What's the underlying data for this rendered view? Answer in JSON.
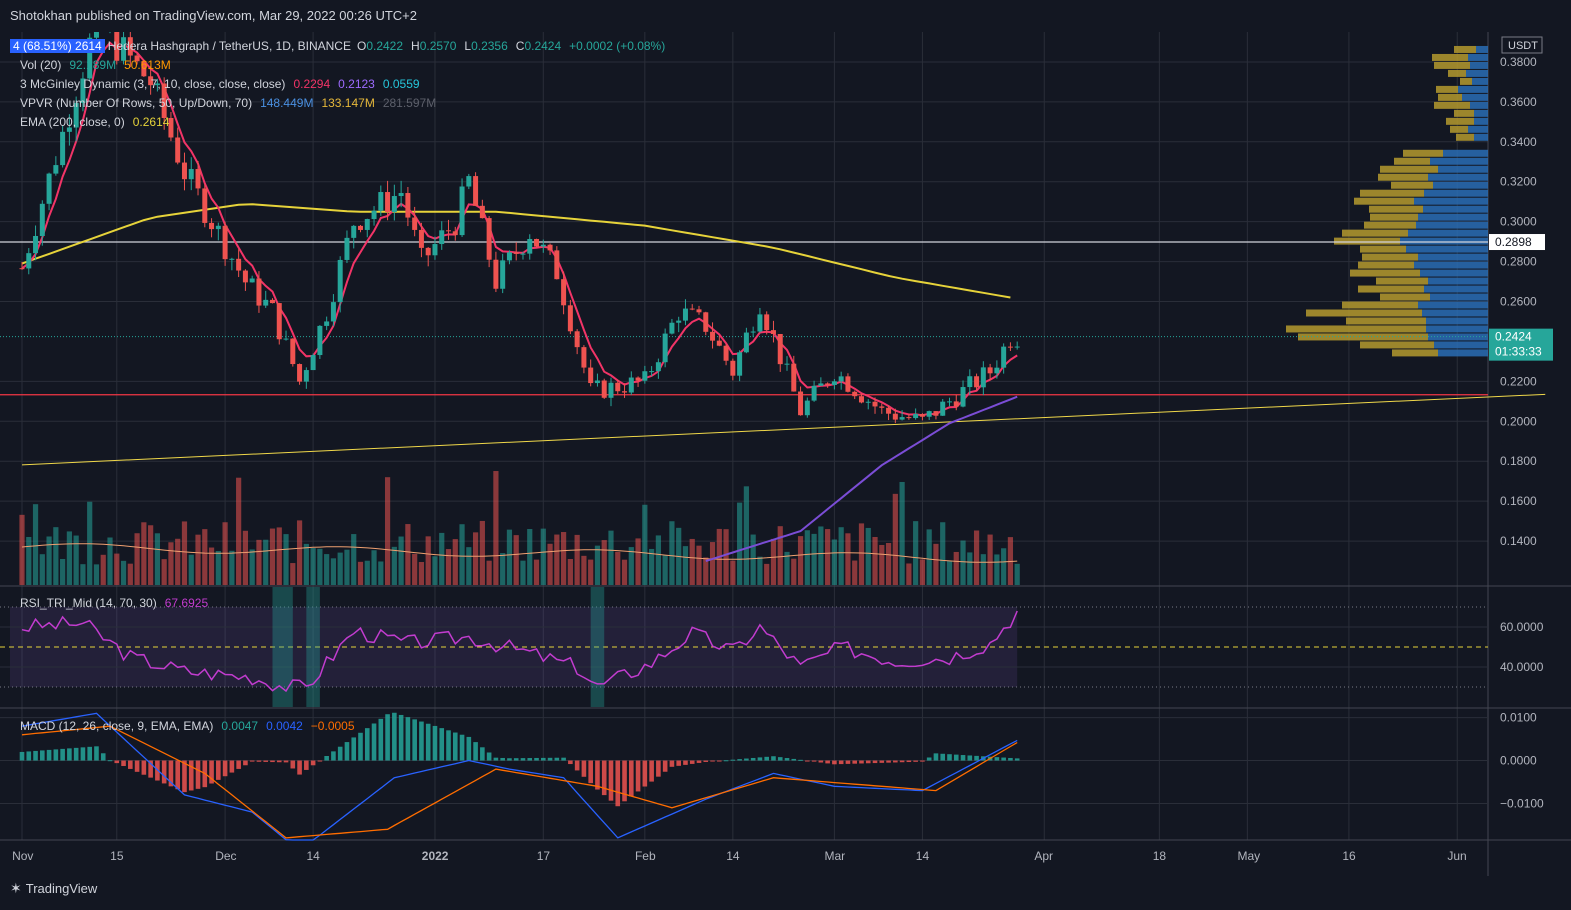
{
  "header": {
    "publisher": "Shotokhan published on TradingView.com, Mar 29, 2022 00:26 UTC+2"
  },
  "footer": {
    "brand": "TradingView"
  },
  "price_axis": {
    "currency": "USDT"
  },
  "legend": {
    "symbol": "Hedera Hashgraph / TetherUS, 1D, BINANCE",
    "ohlc": {
      "o_label": "O",
      "o": "0.2422",
      "h_label": "H",
      "h": "0.2570",
      "l_label": "L",
      "l": "0.2356",
      "c_label": "C",
      "c": "0.2424",
      "change": "+0.0002 (+0.08%)"
    },
    "vol": {
      "label": "Vol (20)",
      "v1": "92.189M",
      "v2": "50.613M"
    },
    "mcginley": {
      "label": "3 McGinley Dynamic (3, 7, 10, close, close, close)",
      "v1": "0.2294",
      "v2": "0.2123",
      "v3": "0.0559"
    },
    "vpvr": {
      "label": "VPVR (Number Of Rows, 50, Up/Down, 70)",
      "v1": "148.449M",
      "v2": "133.147M",
      "v3": "281.597M"
    },
    "ema": {
      "label": "EMA (200, close, 0)",
      "v1": "0.2614"
    },
    "rsi": {
      "label": "RSI_TRI_Mid (14, 70, 30)",
      "v1": "67.6925"
    },
    "macd": {
      "label": "MACD (12, 26, close, 9, EMA, EMA)",
      "v1": "0.0047",
      "v2": "0.0042",
      "v3": "−0.0005"
    },
    "tag_left": "4 (68.51%) 2614"
  },
  "colors": {
    "bg": "#131722",
    "grid": "#2a2e39",
    "up": "#26a69a",
    "down": "#ef5350",
    "ema": "#e6d33a",
    "mcg1": "#f23467",
    "mcg2": "#7b4dd6",
    "rsi": "#c23ccf",
    "macd": "#2962ff",
    "signal": "#ff6d00",
    "vpvr_up": "#2a6db5",
    "vpvr_down": "#b59a2e"
  },
  "chart_data": [
    {
      "type": "candlestick",
      "name": "price",
      "x_ticks": [
        "Nov",
        "15",
        "Dec",
        "14",
        "2022",
        "17",
        "Feb",
        "14",
        "Mar",
        "14",
        "Apr",
        "18",
        "May",
        "16",
        "Jun"
      ],
      "y_ticks": [
        "0.3800",
        "0.3600",
        "0.3400",
        "0.3200",
        "0.3000",
        "0.2800",
        "0.2600",
        "0.2200",
        "0.2000",
        "0.1800",
        "0.1600",
        "0.1400"
      ],
      "ylim": [
        0.125,
        0.385
      ],
      "horizontal_levels": [
        {
          "value": 0.2898,
          "label": "0.2898",
          "color": "#d1d4dc"
        },
        {
          "value": 0.2133,
          "color": "#f23645"
        }
      ],
      "last_price": {
        "value": 0.2424,
        "label": "0.2424",
        "countdown": "01:33:33"
      },
      "trendline": {
        "from": [
          "Nov 1 2021",
          0.1782
        ],
        "to": [
          "Jun 14 2022",
          0.2135
        ]
      },
      "key_points": [
        {
          "date": "Nov 1 2021",
          "close": 0.2767
        },
        {
          "date": "Nov 12 2021",
          "close": 0.4
        },
        {
          "date": "Nov 20 2021",
          "close": 0.37
        },
        {
          "date": "Nov 25 2021",
          "close": 0.325
        },
        {
          "date": "Dec 4 2021",
          "close": 0.27
        },
        {
          "date": "Dec 8 2021",
          "close": 0.255
        },
        {
          "date": "Dec 12 2021",
          "close": 0.22
        },
        {
          "date": "Dec 16 2021",
          "close": 0.255
        },
        {
          "date": "Dec 20 2021",
          "close": 0.3
        },
        {
          "date": "Dec 27 2021",
          "close": 0.315
        },
        {
          "date": "Dec 30 2021",
          "close": 0.28
        },
        {
          "date": "Jan 4 2022",
          "close": 0.3
        },
        {
          "date": "Jan 6 2022",
          "close": 0.32
        },
        {
          "date": "Jan 10 2022",
          "close": 0.27
        },
        {
          "date": "Jan 15 2022",
          "close": 0.295
        },
        {
          "date": "Jan 19 2022",
          "close": 0.275
        },
        {
          "date": "Jan 24 2022",
          "close": 0.215
        },
        {
          "date": "Feb 1 2022",
          "close": 0.22
        },
        {
          "date": "Feb 6 2022",
          "close": 0.255
        },
        {
          "date": "Feb 10 2022",
          "close": 0.248
        },
        {
          "date": "Feb 14 2022",
          "close": 0.225
        },
        {
          "date": "Feb 18 2022",
          "close": 0.26
        },
        {
          "date": "Feb 24 2022",
          "close": 0.205
        },
        {
          "date": "Mar 1 2022",
          "close": 0.225
        },
        {
          "date": "Mar 8 2022",
          "close": 0.205
        },
        {
          "date": "Mar 14 2022",
          "close": 0.2
        },
        {
          "date": "Mar 20 2022",
          "close": 0.215
        },
        {
          "date": "Mar 24 2022",
          "close": 0.225
        },
        {
          "date": "Mar 27 2022",
          "close": 0.242
        },
        {
          "date": "Mar 28 2022",
          "close": 0.2424
        }
      ]
    },
    {
      "type": "line",
      "name": "EMA 200",
      "points": [
        {
          "date": "Nov 1 2021",
          "value": 0.279
        },
        {
          "date": "Nov 20 2021",
          "value": 0.302
        },
        {
          "date": "Dec 4 2021",
          "value": 0.309
        },
        {
          "date": "Dec 20 2021",
          "value": 0.305
        },
        {
          "date": "Jan 10 2022",
          "value": 0.305
        },
        {
          "date": "Feb 1 2022",
          "value": 0.298
        },
        {
          "date": "Feb 20 2022",
          "value": 0.287
        },
        {
          "date": "Mar 10 2022",
          "value": 0.272
        },
        {
          "date": "Mar 28 2022",
          "value": 0.2614
        }
      ]
    },
    {
      "type": "bar",
      "name": "Volume",
      "pattern": "daily volume bars, mostly 25–50% of panel, spikes mid-Nov, mid-Dec and late Feb"
    },
    {
      "type": "line",
      "name": "RSI",
      "y_ticks": [
        "60.0000",
        "40.0000"
      ],
      "ylim": [
        20,
        80
      ],
      "band": [
        30,
        70
      ],
      "mid": 50,
      "points": [
        {
          "date": "Nov 1 2021",
          "value": 60
        },
        {
          "date": "Nov 10 2021",
          "value": 62
        },
        {
          "date": "Nov 17 2021",
          "value": 45
        },
        {
          "date": "Nov 25 2021",
          "value": 38
        },
        {
          "date": "Dec 5 2021",
          "value": 35
        },
        {
          "date": "Dec 10 2021",
          "value": 30
        },
        {
          "date": "Dec 13 2021",
          "value": 30
        },
        {
          "date": "Dec 20 2021",
          "value": 58
        },
        {
          "date": "Dec 28 2021",
          "value": 52
        },
        {
          "date": "Jan 6 2022",
          "value": 55
        },
        {
          "date": "Jan 15 2022",
          "value": 47
        },
        {
          "date": "Jan 22 2022",
          "value": 40
        },
        {
          "date": "Jan 25 2022",
          "value": 30
        },
        {
          "date": "Feb 2 2022",
          "value": 42
        },
        {
          "date": "Feb 8 2022",
          "value": 57
        },
        {
          "date": "Feb 14 2022",
          "value": 48
        },
        {
          "date": "Feb 18 2022",
          "value": 60
        },
        {
          "date": "Feb 24 2022",
          "value": 40
        },
        {
          "date": "Mar 2 2022",
          "value": 50
        },
        {
          "date": "Mar 10 2022",
          "value": 43
        },
        {
          "date": "Mar 18 2022",
          "value": 45
        },
        {
          "date": "Mar 24 2022",
          "value": 52
        },
        {
          "date": "Mar 28 2022",
          "value": 67.69
        }
      ]
    },
    {
      "type": "line",
      "name": "MACD",
      "y_ticks": [
        "0.0100",
        "0.0000",
        "−0.0100"
      ],
      "ylim": [
        -0.0185,
        0.012
      ],
      "macd_points": [
        {
          "date": "Nov 1 2021",
          "value": 0.008
        },
        {
          "date": "Nov 12 2021",
          "value": 0.011
        },
        {
          "date": "Nov 25 2021",
          "value": -0.008
        },
        {
          "date": "Dec 5 2021",
          "value": -0.012
        },
        {
          "date": "Dec 12 2021",
          "value": -0.021
        },
        {
          "date": "Dec 26 2021",
          "value": -0.004
        },
        {
          "date": "Jan 6 2022",
          "value": 0.0
        },
        {
          "date": "Jan 12 2022",
          "value": -0.002
        },
        {
          "date": "Jan 20 2022",
          "value": -0.004
        },
        {
          "date": "Jan 28 2022",
          "value": -0.018
        },
        {
          "date": "Feb 10 2022",
          "value": -0.009
        },
        {
          "date": "Feb 20 2022",
          "value": -0.003
        },
        {
          "date": "Mar 1 2022",
          "value": -0.006
        },
        {
          "date": "Mar 14 2022",
          "value": -0.007
        },
        {
          "date": "Mar 28 2022",
          "value": 0.0047
        }
      ],
      "signal_points": [
        {
          "date": "Nov 1 2021",
          "value": 0.006
        },
        {
          "date": "Nov 14 2021",
          "value": 0.008
        },
        {
          "date": "Nov 28 2021",
          "value": -0.003
        },
        {
          "date": "Dec 10 2021",
          "value": -0.018
        },
        {
          "date": "Dec 25 2021",
          "value": -0.016
        },
        {
          "date": "Jan 10 2022",
          "value": -0.002
        },
        {
          "date": "Jan 25 2022",
          "value": -0.006
        },
        {
          "date": "Feb 5 2022",
          "value": -0.011
        },
        {
          "date": "Feb 20 2022",
          "value": -0.004
        },
        {
          "date": "Mar 8 2022",
          "value": -0.006
        },
        {
          "date": "Mar 16 2022",
          "value": -0.007
        },
        {
          "date": "Mar 28 2022",
          "value": 0.0042
        }
      ]
    },
    {
      "type": "bar",
      "name": "VPVR",
      "rows_up": [
        12,
        20,
        18,
        22,
        16,
        30,
        26,
        18,
        14,
        14,
        20,
        14,
        0,
        45,
        58,
        50,
        60,
        55,
        64,
        74,
        65,
        70,
        72,
        80,
        88,
        82,
        70,
        74,
        68,
        60,
        64,
        58,
        70,
        66,
        62,
        62,
        60,
        54,
        50,
        0,
        0,
        0,
        0,
        0,
        0,
        0,
        0,
        0,
        0,
        0
      ],
      "rows_down": [
        22,
        36,
        36,
        18,
        12,
        22,
        24,
        36,
        20,
        28,
        18,
        18,
        0,
        40,
        36,
        58,
        50,
        42,
        64,
        60,
        54,
        48,
        52,
        66,
        66,
        46,
        56,
        56,
        70,
        52,
        66,
        50,
        76,
        116,
        80,
        140,
        130,
        74,
        46,
        0,
        0,
        0,
        0,
        0,
        0,
        0,
        0,
        0,
        0,
        0
      ],
      "row_price_top": 0.388,
      "row_step": 0.004
    }
  ]
}
